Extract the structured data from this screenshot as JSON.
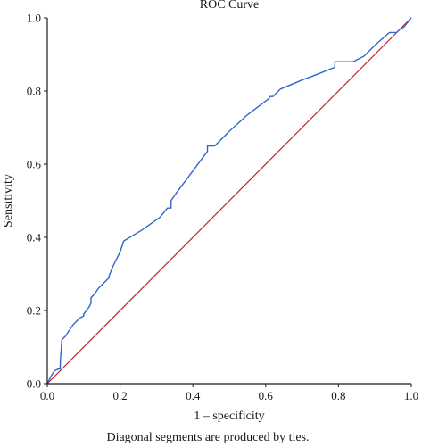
{
  "chart_data": {
    "type": "line",
    "title": "ROC Curve",
    "xlabel": "1 – specificity",
    "ylabel": "Sensitivity",
    "footnote": "Diagonal segments are produced by ties.",
    "xlim": [
      0.0,
      1.0
    ],
    "ylim": [
      0.0,
      1.0
    ],
    "x_ticks": [
      "0.0",
      "0.2",
      "0.4",
      "0.6",
      "0.8",
      "1.0"
    ],
    "y_ticks": [
      "0.0",
      "0.2",
      "0.4",
      "0.6",
      "0.8",
      "1.0"
    ],
    "x_tick_values": [
      0.0,
      0.2,
      0.4,
      0.6,
      0.8,
      1.0
    ],
    "y_tick_values": [
      0.0,
      0.2,
      0.4,
      0.6,
      0.8,
      1.0
    ],
    "grid": false,
    "series": [
      {
        "color": "#2f66c8",
        "x": [
          0.0,
          0.01,
          0.02,
          0.03,
          0.035,
          0.037,
          0.038,
          0.04,
          0.05,
          0.06,
          0.07,
          0.08,
          0.09,
          0.1,
          0.1,
          0.115,
          0.12,
          0.12,
          0.13,
          0.14,
          0.15,
          0.16,
          0.17,
          0.17,
          0.18,
          0.19,
          0.2,
          0.21,
          0.26,
          0.31,
          0.33,
          0.34,
          0.34,
          0.35,
          0.38,
          0.41,
          0.44,
          0.44,
          0.46,
          0.5,
          0.55,
          0.61,
          0.61,
          0.62,
          0.63,
          0.64,
          0.7,
          0.74,
          0.79,
          0.79,
          0.84,
          0.85,
          0.87,
          0.9,
          0.94,
          0.96,
          0.97,
          0.98,
          1.0
        ],
        "y": [
          0.0,
          0.02,
          0.035,
          0.04,
          0.04,
          0.08,
          0.09,
          0.12,
          0.13,
          0.145,
          0.16,
          0.17,
          0.18,
          0.185,
          0.19,
          0.21,
          0.22,
          0.235,
          0.245,
          0.26,
          0.27,
          0.28,
          0.29,
          0.295,
          0.32,
          0.34,
          0.36,
          0.39,
          0.42,
          0.455,
          0.48,
          0.48,
          0.5,
          0.515,
          0.555,
          0.595,
          0.635,
          0.65,
          0.65,
          0.69,
          0.735,
          0.78,
          0.785,
          0.785,
          0.795,
          0.805,
          0.83,
          0.845,
          0.865,
          0.88,
          0.88,
          0.885,
          0.895,
          0.925,
          0.96,
          0.96,
          0.97,
          0.975,
          1.0
        ]
      },
      {
        "color": "#c0272d",
        "x": [
          0.0,
          1.0
        ],
        "y": [
          0.0,
          1.0
        ]
      }
    ]
  },
  "colors": {
    "axis": "#1a1a1a",
    "curve": "#2f66c8",
    "reference": "#c0272d",
    "background": "#ffffff"
  }
}
